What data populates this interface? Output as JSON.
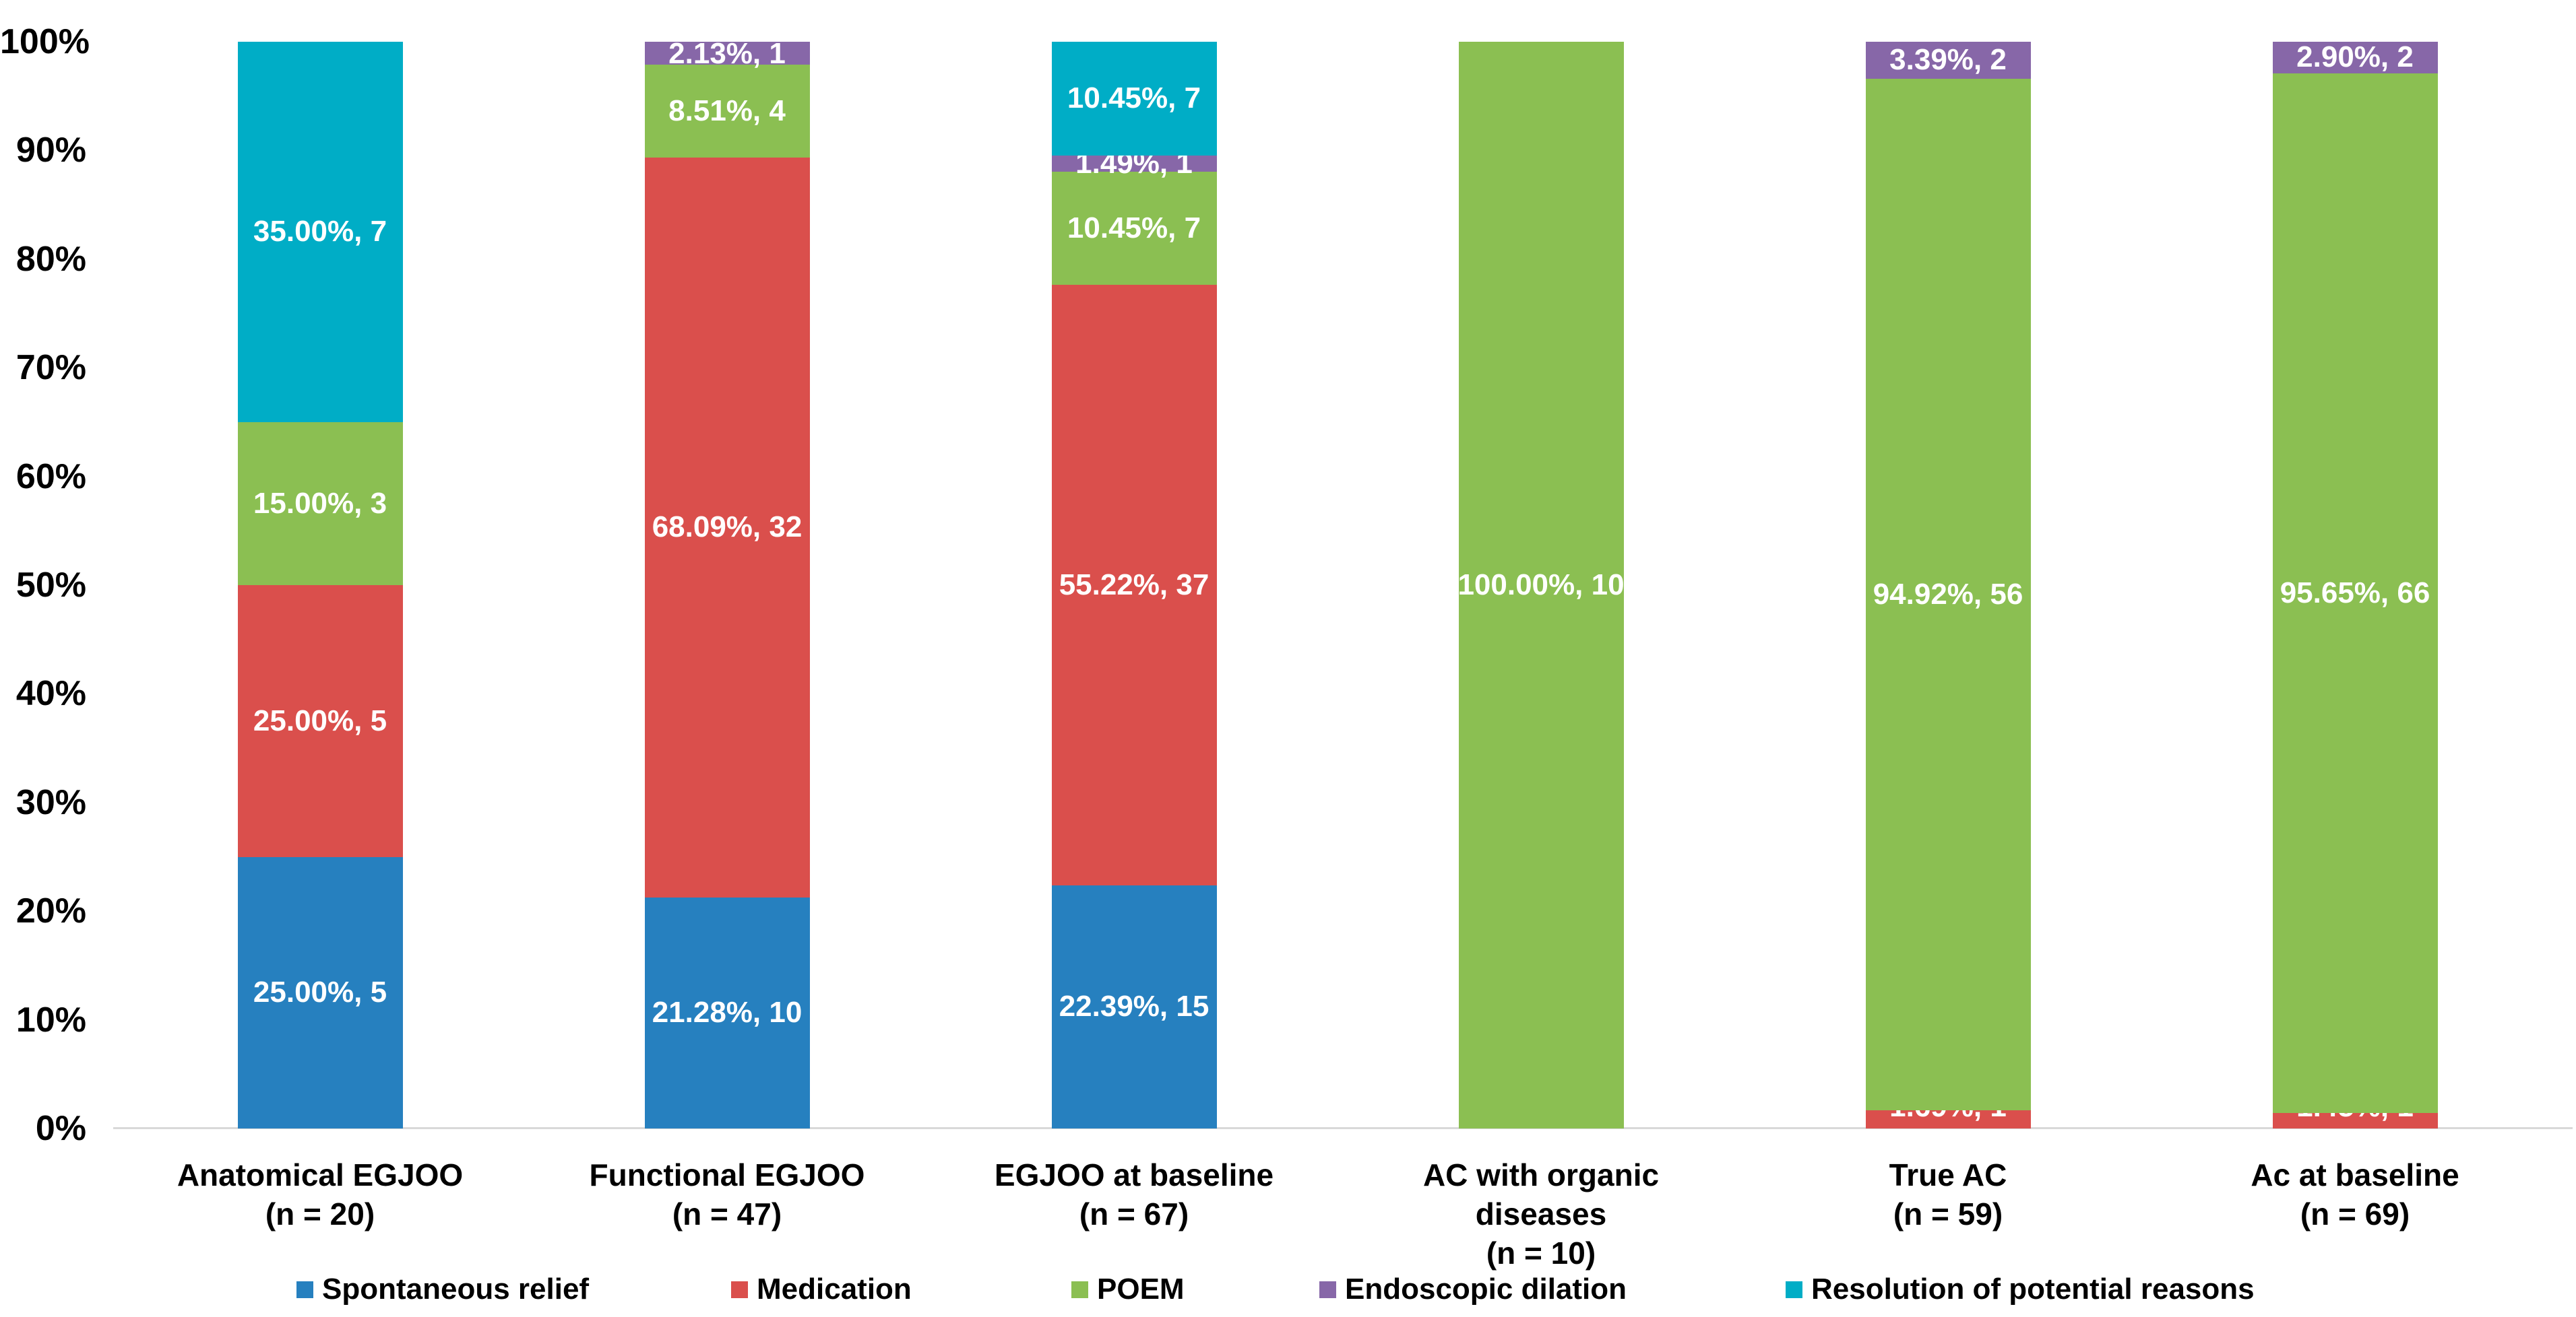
{
  "chart_data": {
    "type": "bar",
    "subtype": "stacked-100-percent-column",
    "title": "",
    "xlabel": "",
    "ylabel": "",
    "grid": false,
    "legend_position": "bottom",
    "y_axis": {
      "min": 0,
      "max": 100,
      "tick_step": 10,
      "tick_labels": [
        "0%",
        "10%",
        "20%",
        "30%",
        "40%",
        "50%",
        "60%",
        "70%",
        "80%",
        "90%",
        "100%"
      ]
    },
    "categories": [
      "Anatomical EGJOO\n(n = 20)",
      "Functional EGJOO\n(n = 47)",
      "EGJOO at baseline\n(n = 67)",
      "AC with organic\ndiseases\n(n = 10)",
      "True AC\n(n = 59)",
      "Ac at baseline\n(n = 69)"
    ],
    "series": [
      {
        "name": "Spontaneous relief",
        "color": "#2680bf",
        "values": [
          25.0,
          21.28,
          22.39,
          0,
          0,
          0
        ],
        "counts": [
          5,
          10,
          15,
          null,
          null,
          null
        ]
      },
      {
        "name": "Medication",
        "color": "#da4f4c",
        "values": [
          25.0,
          68.09,
          55.22,
          0,
          1.69,
          1.45
        ],
        "counts": [
          5,
          32,
          37,
          null,
          1,
          1
        ]
      },
      {
        "name": "POEM",
        "color": "#8bbf52",
        "values": [
          15.0,
          8.51,
          10.45,
          100.0,
          94.92,
          95.65
        ],
        "counts": [
          3,
          4,
          7,
          10,
          56,
          66
        ]
      },
      {
        "name": "Endoscopic dilation",
        "color": "#8767a8",
        "values": [
          0,
          2.13,
          1.49,
          0,
          3.39,
          2.9
        ],
        "counts": [
          null,
          1,
          1,
          null,
          2,
          2
        ]
      },
      {
        "name": "Resolution of potential reasons",
        "color": "#00adc6",
        "values": [
          35.0,
          0,
          10.45,
          0,
          0,
          0
        ],
        "counts": [
          7,
          null,
          7,
          null,
          null,
          null
        ]
      }
    ],
    "data_label_format": "{percent}%, {count}"
  }
}
